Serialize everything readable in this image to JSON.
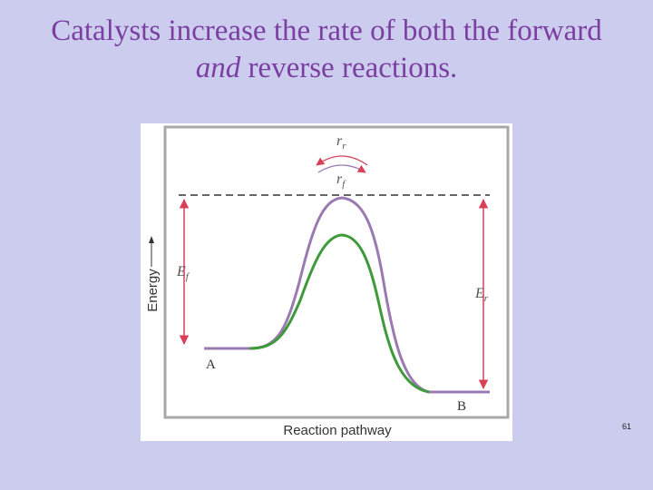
{
  "slide": {
    "title_line1": "Catalysts increase the rate of both the forward",
    "title_line2_italic": "and",
    "title_line2_rest": " reverse reactions.",
    "page_number": "61"
  },
  "diagram": {
    "y_axis_label": "Energy",
    "x_axis_label": "Reaction pathway",
    "reactant_label": "A",
    "product_label": "B",
    "forward_energy_label": {
      "main": "E",
      "sub": "f"
    },
    "reverse_energy_label": {
      "main": "E",
      "sub": "r"
    },
    "reverse_rate_label": {
      "main": "r",
      "sub": "r"
    },
    "forward_rate_label": {
      "main": "r",
      "sub": "f"
    },
    "colors": {
      "uncatalyzed_curve": "#9a7ab0",
      "catalyzed_curve": "#3e9a3a",
      "arrows": "#d8405a",
      "frame": "#a8a8a8"
    }
  }
}
